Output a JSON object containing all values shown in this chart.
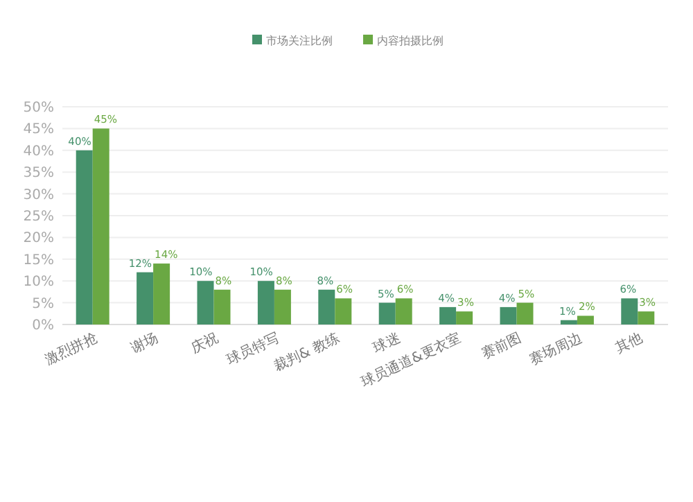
{
  "chart_data": {
    "type": "bar",
    "categories": [
      "激烈拼抢",
      "谢场",
      "庆祝",
      "球员特写",
      "裁判& 教练",
      "球迷",
      "球员通道&更衣室",
      "赛前图",
      "赛场周边",
      "其他"
    ],
    "series": [
      {
        "name": "市场关注比例",
        "color": "#45916b",
        "values": [
          40,
          12,
          10,
          10,
          8,
          5,
          4,
          4,
          1,
          6
        ],
        "value_labels": [
          "40%",
          "12%",
          "10%",
          "10%",
          "8%",
          "5%",
          "4%",
          "4%",
          "1%",
          "6%"
        ]
      },
      {
        "name": "内容拍摄比例",
        "color": "#6aa843",
        "values": [
          45,
          14,
          8,
          8,
          6,
          6,
          3,
          5,
          2,
          3
        ],
        "value_labels": [
          "45%",
          "14%",
          "8%",
          "8%",
          "6%",
          "6%",
          "3%",
          "5%",
          "2%",
          "3%"
        ]
      }
    ],
    "ylim": [
      0,
      50
    ],
    "yticks": [
      {
        "value": 0,
        "label": "0%"
      },
      {
        "value": 5,
        "label": "5%"
      },
      {
        "value": 10,
        "label": "10%"
      },
      {
        "value": 15,
        "label": "15%"
      },
      {
        "value": 20,
        "label": "20%"
      },
      {
        "value": 25,
        "label": "25%"
      },
      {
        "value": 30,
        "label": "30%"
      },
      {
        "value": 35,
        "label": "35%"
      },
      {
        "value": 40,
        "label": "40%"
      },
      {
        "value": 45,
        "label": "45%"
      },
      {
        "value": 50,
        "label": "50%"
      }
    ],
    "grid": "y",
    "legend": "top"
  }
}
